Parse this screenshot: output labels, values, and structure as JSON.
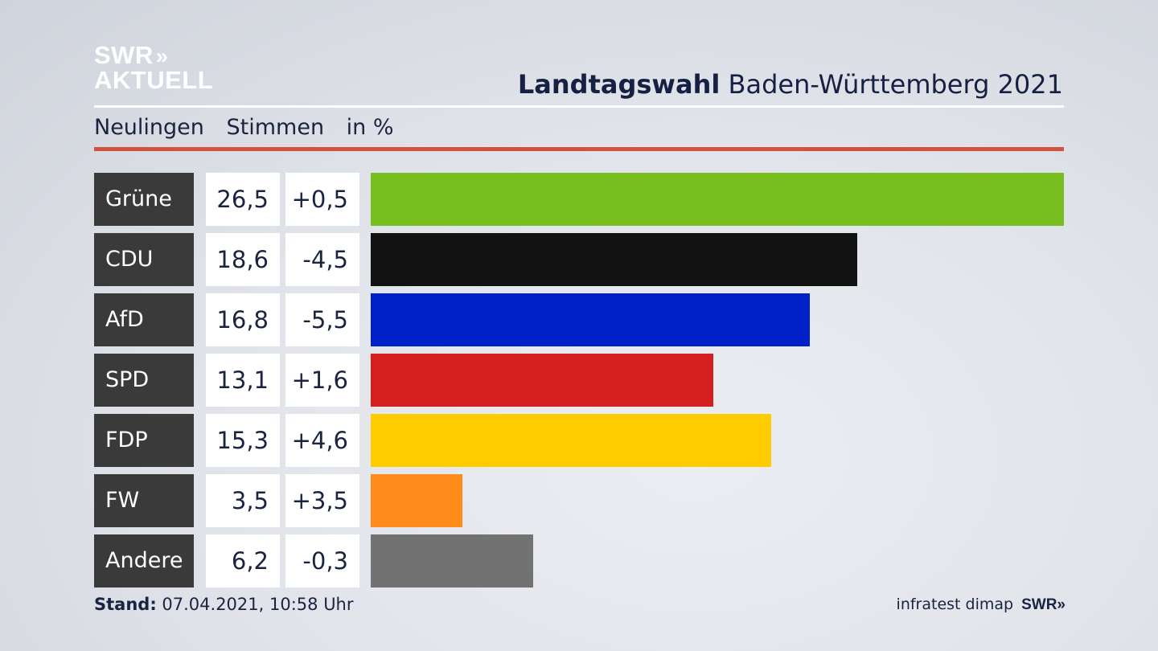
{
  "logo": {
    "line1": "SWR",
    "arrows": "»",
    "line2": "AKTUELL"
  },
  "header": {
    "title_bold": "Landtagswahl",
    "title_rest": "Baden-Württemberg 2021"
  },
  "subheader": {
    "segment": "Neulingen",
    "measure": "Stimmen",
    "unit": "in %"
  },
  "chart_data": {
    "type": "bar",
    "orientation": "horizontal",
    "categories": [
      "Grüne",
      "CDU",
      "AfD",
      "SPD",
      "FDP",
      "FW",
      "Andere"
    ],
    "values": [
      26.5,
      18.6,
      16.8,
      13.1,
      15.3,
      3.5,
      6.2
    ],
    "value_labels": [
      "26,5",
      "18,6",
      "16,8",
      "13,1",
      "15,3",
      "3,5",
      "6,2"
    ],
    "changes": [
      0.5,
      -4.5,
      -5.5,
      1.6,
      4.6,
      3.5,
      -0.3
    ],
    "change_labels": [
      "+0,5",
      "-4,5",
      "-5,5",
      "+1,6",
      "+4,6",
      "+3,5",
      "-0,3"
    ],
    "colors": [
      "#78be1e",
      "#121212",
      "#0021c8",
      "#d51f1f",
      "#ffcc00",
      "#ff8c1a",
      "#727272"
    ],
    "xlim": [
      0,
      26.5
    ],
    "grid": false,
    "legend": "none"
  },
  "footer": {
    "stand_label": "Stand:",
    "stand_value": "07.04.2021, 10:58 Uhr",
    "source": "infratest dimap",
    "brand": "SWR",
    "brand_arrows": "»"
  }
}
